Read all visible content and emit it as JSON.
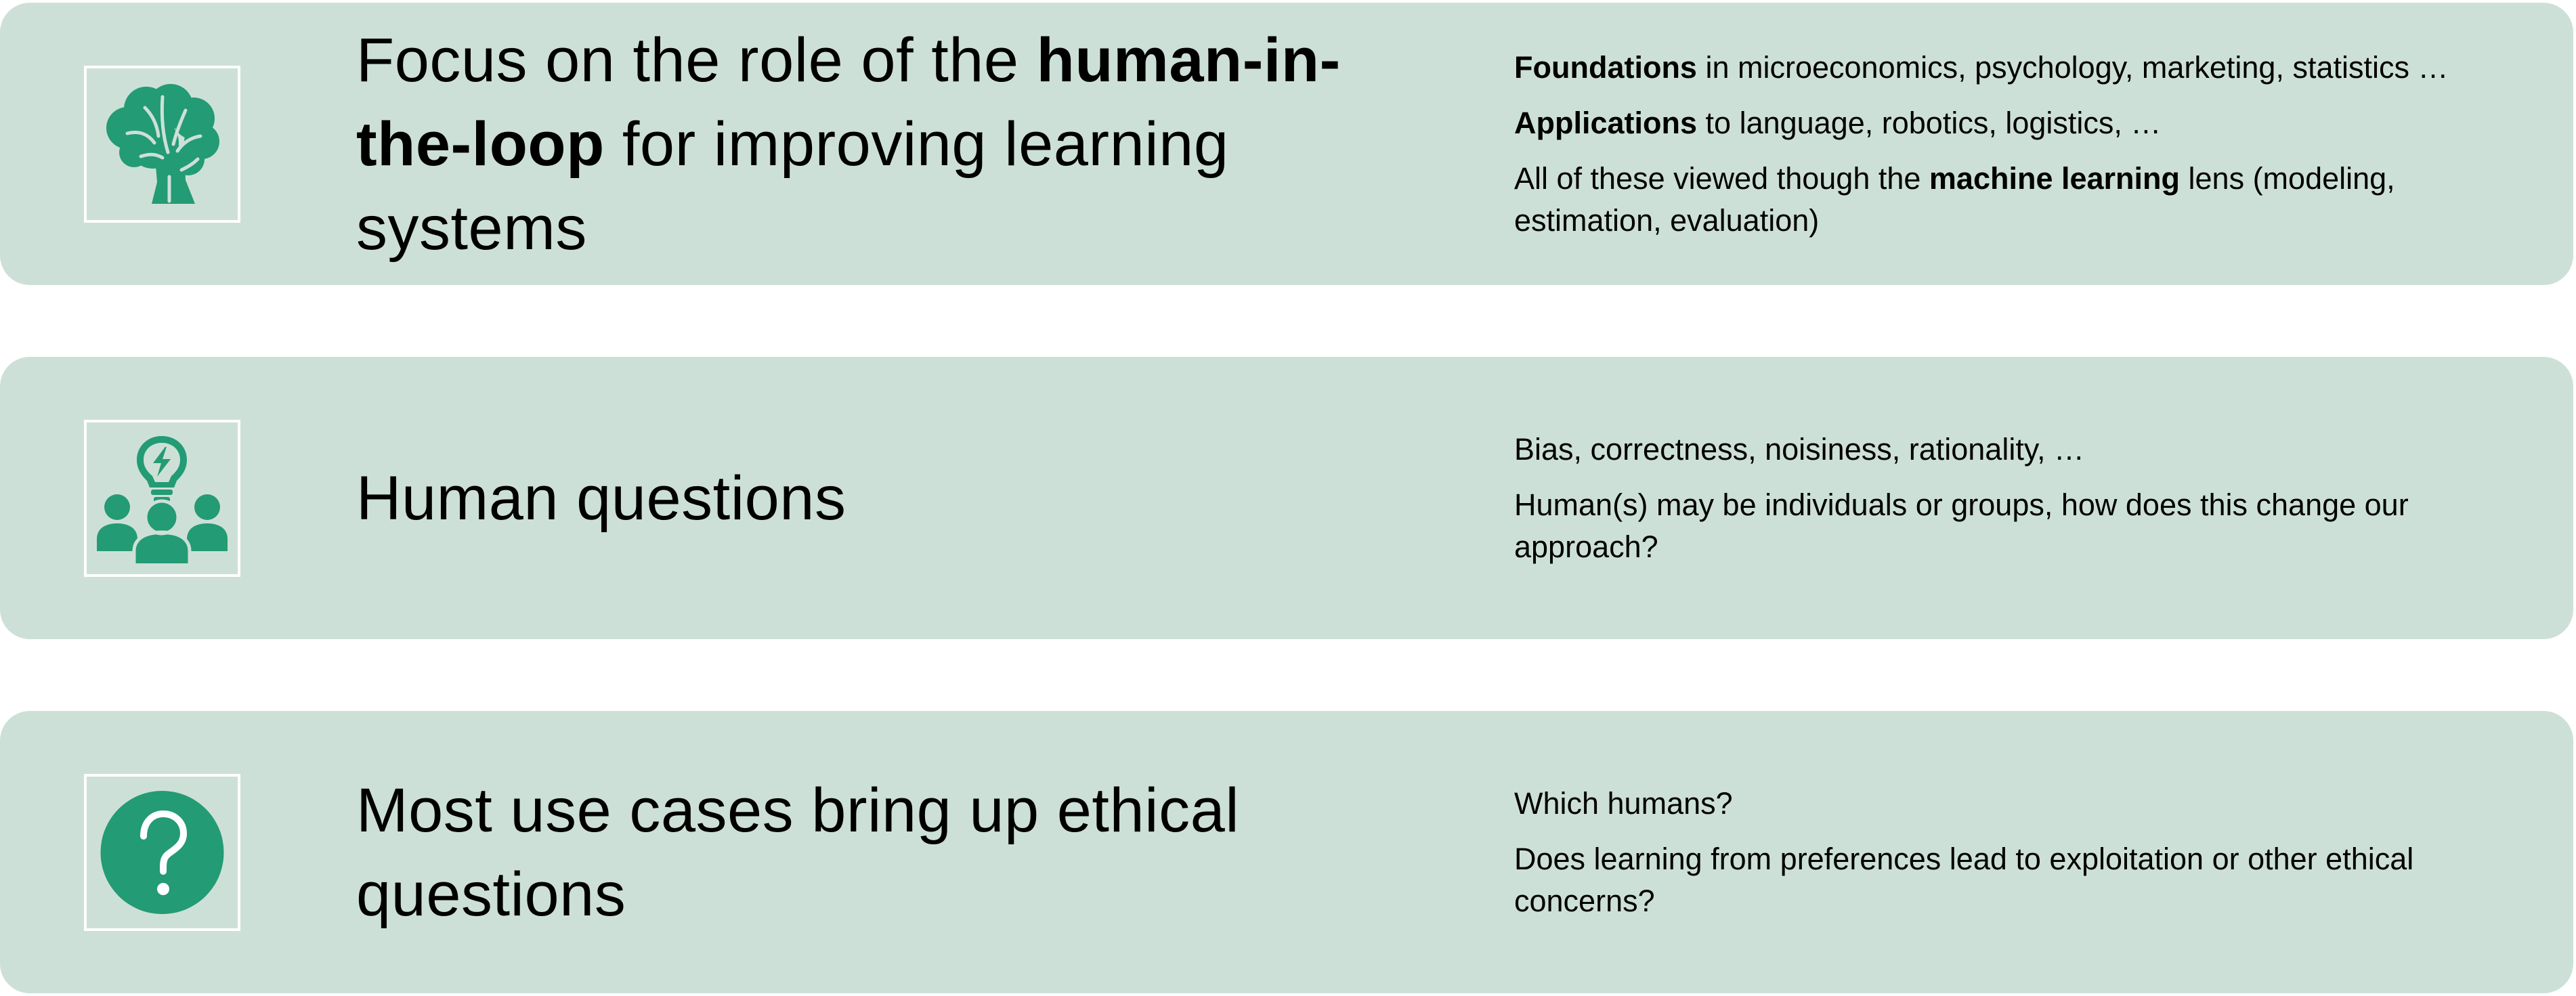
{
  "colors": {
    "card_background": "#cde0d7",
    "icon_green": "#239b74",
    "icon_frame": "#ffffff"
  },
  "rows": [
    {
      "icon": "brain-icon",
      "headline": {
        "pre": "Focus on the role of the ",
        "bold": "human-in-the-loop",
        "post": " for improving learning systems"
      },
      "points": [
        {
          "pre": "",
          "bold": "Foundations",
          "post": " in microeconomics, psychology, marketing, statistics …"
        },
        {
          "pre": "",
          "bold": "Applications",
          "post": " to language, robotics, logistics, …"
        },
        {
          "pre": "All of these viewed though the ",
          "bold": "machine learning",
          "post": " lens (modeling, estimation, evaluation)"
        }
      ]
    },
    {
      "icon": "people-lightbulb-icon",
      "headline": {
        "pre": "Human questions",
        "bold": "",
        "post": ""
      },
      "points": [
        {
          "pre": "Bias, correctness, noisiness, rationality, …",
          "bold": "",
          "post": ""
        },
        {
          "pre": "Human(s) may be individuals or groups, how does this change our approach?",
          "bold": "",
          "post": ""
        }
      ]
    },
    {
      "icon": "question-mark-icon",
      "headline": {
        "pre": "Most use cases bring up ethical questions",
        "bold": "",
        "post": ""
      },
      "points": [
        {
          "pre": "Which humans?",
          "bold": "",
          "post": ""
        },
        {
          "pre": "Does learning from preferences lead to exploitation or other ethical concerns?",
          "bold": "",
          "post": ""
        }
      ]
    }
  ]
}
